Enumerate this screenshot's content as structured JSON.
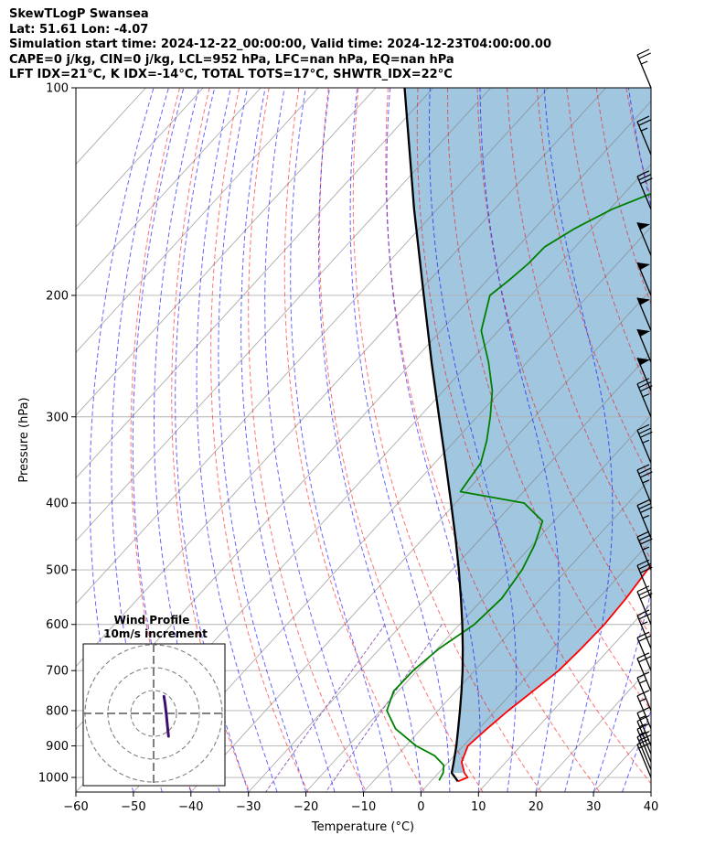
{
  "header": {
    "line1": "SkewTLogP Swansea",
    "line2": "Lat: 51.61   Lon: -4.07",
    "line3": "Simulation start time: 2024-12-22_00:00:00, Valid time: 2024-12-23T04:00:00.00",
    "line4": "CAPE=0 j/kg, CIN=0 j/kg, LCL=952 hPa, LFC=nan hPa, EQ=nan hPa",
    "line5": "LFT IDX=21°C, K IDX=-14°C, TOTAL TOTS=17°C, SHWTR_IDX=22°C"
  },
  "chart_data": {
    "type": "line",
    "xlabel": "Temperature (°C)",
    "ylabel": "Pressure (hPa)",
    "xlim": [
      -60,
      40
    ],
    "ylim": [
      1050,
      100
    ],
    "y_scale": "log",
    "skew": true,
    "grid": true,
    "x_ticks": [
      -60,
      -50,
      -40,
      -30,
      -20,
      -10,
      0,
      10,
      20,
      30,
      40
    ],
    "y_ticks": [
      100,
      200,
      300,
      400,
      500,
      600,
      700,
      800,
      900,
      1000
    ],
    "colors": {
      "temperature": "#ff0000",
      "dewpoint": "#008000",
      "parcel": "#000000",
      "cape_fill": "#1f77b4",
      "dry_adiabat": "#ff0000",
      "moist_adiabat": "#0000ff",
      "mixing_ratio": "#9467bd",
      "isotherm": "#808080"
    },
    "series": [
      {
        "key": "temperature",
        "pressure": [
          1013,
          1000,
          985,
          950,
          900,
          850,
          800,
          750,
          700,
          650,
          600,
          550,
          500,
          450,
          400,
          375,
          350,
          325,
          300,
          275,
          250,
          225,
          200,
          190,
          180,
          170,
          160,
          150,
          140,
          130,
          120,
          110,
          100
        ],
        "values": [
          4.7,
          5.8,
          4.5,
          2.3,
          0.8,
          1.4,
          2.2,
          3.4,
          4.6,
          5.0,
          5.2,
          4.8,
          4.0,
          3.3,
          2.0,
          0.6,
          -1.2,
          -3.4,
          -5.8,
          -8.6,
          -12.0,
          -15.9,
          -20.7,
          -22.4,
          -23.4,
          -22.6,
          -20.2,
          -16.7,
          -11.7,
          -7.2,
          -3.5,
          -1.0,
          0.2
        ]
      },
      {
        "key": "dewpoint",
        "pressure": [
          1010,
          1000,
          985,
          960,
          930,
          900,
          850,
          800,
          750,
          700,
          650,
          600,
          550,
          500,
          460,
          425,
          400,
          385,
          350,
          325,
          300,
          275,
          250,
          225,
          200,
          190,
          180,
          170,
          160,
          150,
          140,
          130,
          120,
          110,
          100
        ],
        "values": [
          1.3,
          1.1,
          0.8,
          -0.3,
          -3.4,
          -8.2,
          -14.5,
          -18.9,
          -20.8,
          -20.7,
          -19.7,
          -17.4,
          -16.8,
          -17.8,
          -19.6,
          -22.0,
          -28.1,
          -41.0,
          -42.0,
          -44.5,
          -47.7,
          -51.5,
          -56.7,
          -63.0,
          -67.1,
          -66.2,
          -65.5,
          -65.3,
          -63.0,
          -59.6,
          -53.9,
          -46.7,
          -40.4,
          -36.2,
          -32.2
        ]
      },
      {
        "key": "parcel",
        "pressure": [
          1013,
          1000,
          985,
          952,
          900,
          850,
          800,
          750,
          700,
          650,
          600,
          550,
          500,
          450,
          400,
          350,
          300,
          250,
          200,
          150,
          100
        ],
        "values": [
          4.7,
          3.6,
          2.3,
          1.0,
          -1.2,
          -3.6,
          -6.2,
          -9.0,
          -12.1,
          -15.6,
          -19.5,
          -23.9,
          -28.8,
          -34.4,
          -40.8,
          -48.1,
          -56.6,
          -66.6,
          -78.6,
          -94.0,
          -115.0
        ]
      }
    ],
    "wind_barbs": {
      "pressure": [
        100,
        125,
        150,
        175,
        200,
        225,
        250,
        275,
        300,
        350,
        400,
        450,
        500,
        550,
        600,
        650,
        700,
        750,
        800,
        850,
        900,
        925,
        950,
        975,
        1000
      ],
      "speed_kt": [
        25,
        25,
        30,
        50,
        50,
        50,
        50,
        50,
        35,
        35,
        35,
        35,
        35,
        30,
        30,
        25,
        20,
        20,
        15,
        15,
        15,
        15,
        15,
        20,
        20
      ]
    },
    "hodograph": {
      "title": "Wind Profile",
      "subtitle": "10m/s increment",
      "rings_ms": [
        10,
        20,
        30
      ],
      "points": [
        [
          4.5,
          -7.5
        ],
        [
          5,
          -4.5
        ],
        [
          5.5,
          0
        ],
        [
          6,
          5
        ],
        [
          6.5,
          10
        ]
      ]
    }
  }
}
